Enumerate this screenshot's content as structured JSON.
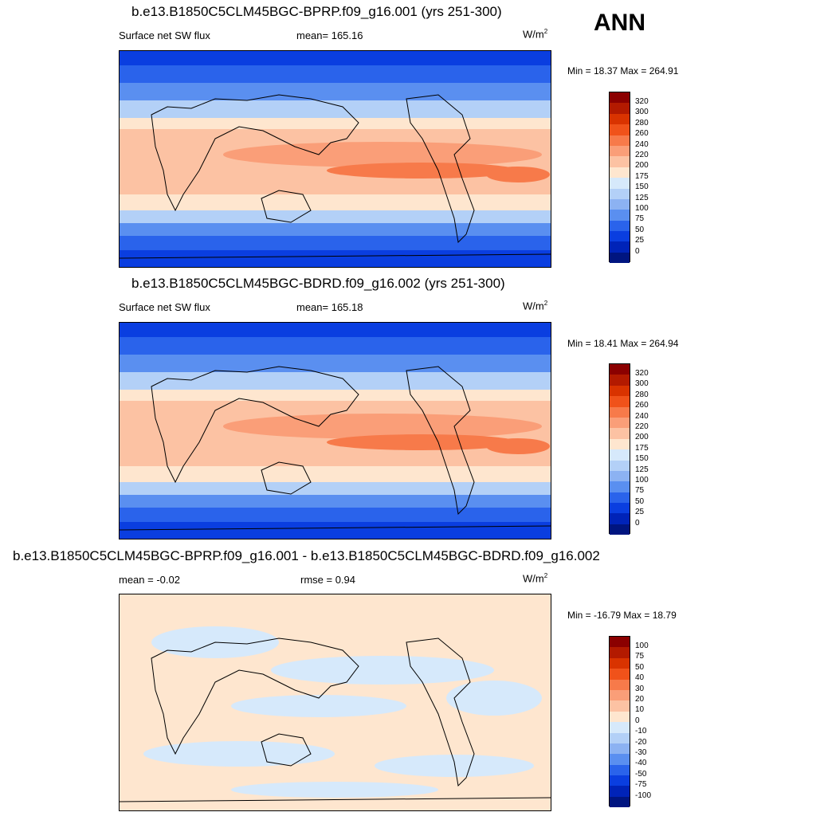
{
  "season": "ANN",
  "panels": [
    {
      "title": "b.e13.B1850C5CLM45BGC-BPRP.f09_g16.001 (yrs 251-300)",
      "left_label": "Surface net SW flux",
      "center_label": "mean= 165.16",
      "units": "W/m",
      "units_sup": "2",
      "minmax": "Min =  18.37 Max = 264.91"
    },
    {
      "title": "b.e13.B1850C5CLM45BGC-BDRD.f09_g16.002 (yrs 251-300)",
      "left_label": "Surface net SW flux",
      "center_label": "mean= 165.18",
      "units": "W/m",
      "units_sup": "2",
      "minmax": "Min =  18.41 Max = 264.94"
    },
    {
      "title": "b.e13.B1850C5CLM45BGC-BPRP.f09_g16.001 - b.e13.B1850C5CLM45BGC-BDRD.f09_g16.002",
      "left_label": "mean =  -0.02",
      "center_label": "rmse =   0.94",
      "units": "W/m",
      "units_sup": "2",
      "minmax": "Min = -16.79 Max =  18.79"
    }
  ],
  "colorbars": {
    "absolute_levels": [
      "320",
      "300",
      "280",
      "260",
      "240",
      "220",
      "200",
      "175",
      "150",
      "125",
      "100",
      "75",
      "50",
      "25",
      "0"
    ],
    "diff_levels": [
      "100",
      "75",
      "50",
      "40",
      "30",
      "20",
      "10",
      "0",
      "-10",
      "-20",
      "-30",
      "-40",
      "-50",
      "-75",
      "-100"
    ],
    "colors": [
      "#8b0000",
      "#b31a00",
      "#d93300",
      "#f0521a",
      "#f77a4a",
      "#fa9e78",
      "#fcc2a3",
      "#fee6cf",
      "#d6e9fb",
      "#b3d0f7",
      "#8cb2f2",
      "#5a8ff0",
      "#2a63eb",
      "#0a3ee0",
      "#0023b8",
      "#001580"
    ]
  }
}
